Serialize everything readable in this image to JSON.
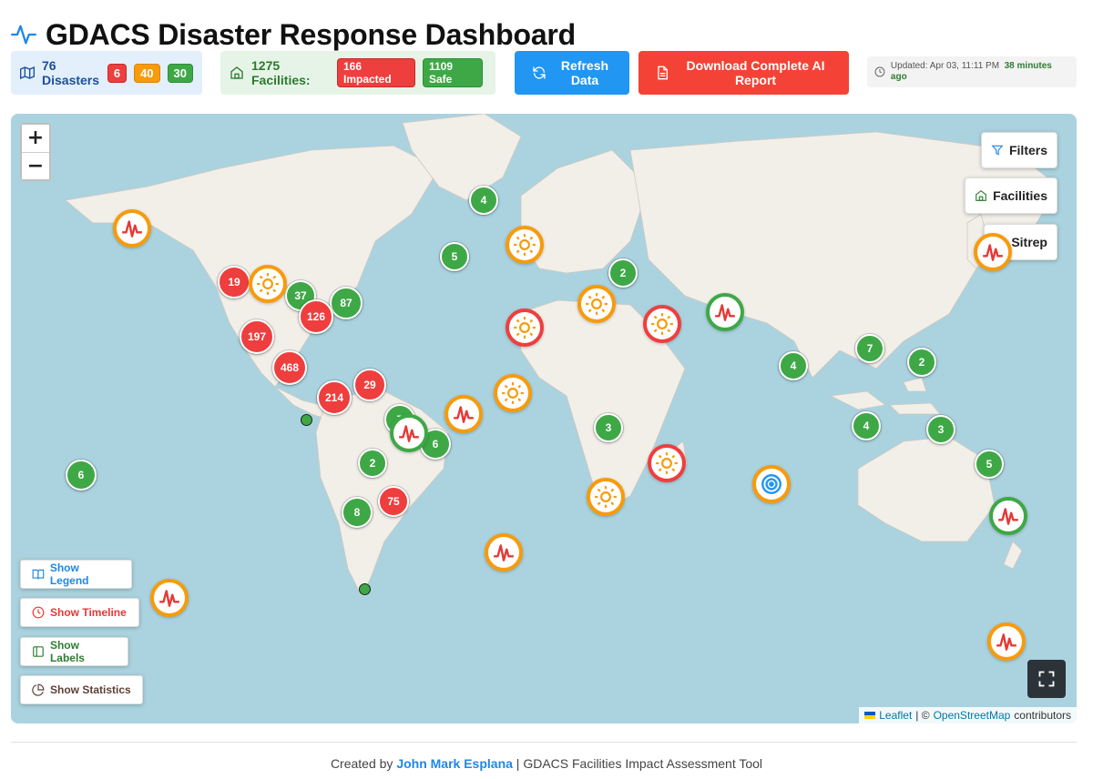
{
  "header": {
    "title": "GDACS Disaster Response Dashboard",
    "disasters": {
      "label": "76 Disasters",
      "red": "6",
      "orange": "40",
      "green": "30"
    },
    "facilities": {
      "label": "1275 Facilities:",
      "impacted": "166 Impacted",
      "safe": "1109 Safe"
    },
    "refresh_label": "Refresh Data",
    "download_label": "Download Complete AI Report",
    "updated_text": "Updated: Apr 03, 11:11 PM",
    "updated_ago": "38 minutes ago"
  },
  "map": {
    "zoom_in": "+",
    "zoom_out": "−",
    "controls": {
      "filters": "Filters",
      "facilities": "Facilities",
      "sitrep": "Sitrep"
    },
    "left_buttons": {
      "legend": "Show Legend",
      "timeline": "Show Timeline",
      "labels": "Show Labels",
      "statistics": "Show Statistics"
    },
    "attribution": {
      "leaflet": "Leaflet",
      "sep": "| ©",
      "osm": "OpenStreetMap",
      "suffix": "contributors"
    },
    "clusters": {
      "c4a": "4",
      "c5a": "5",
      "c2a": "2",
      "c19": "19",
      "c37": "37",
      "c87": "87",
      "c126": "126",
      "c197": "197",
      "c468": "468",
      "c214": "214",
      "c29": "29",
      "c7a": "7",
      "c6a": "6",
      "c2b": "2",
      "c8": "8",
      "c75": "75",
      "c6b": "6",
      "c3a": "3",
      "c4b": "4",
      "c7b": "7",
      "c2c": "2",
      "c4c": "4",
      "c3b": "3",
      "c5b": "5"
    }
  },
  "footer": {
    "prefix": "Created by",
    "author": "John Mark Esplana",
    "suffix": "| GDACS Facilities Impact Assessment Tool"
  },
  "colors": {
    "red": "#ef3e3e",
    "orange": "#f79b0b",
    "green": "#3ea846",
    "blue": "#2196f3",
    "ocean": "#aad3df",
    "land": "#f2efe9"
  }
}
